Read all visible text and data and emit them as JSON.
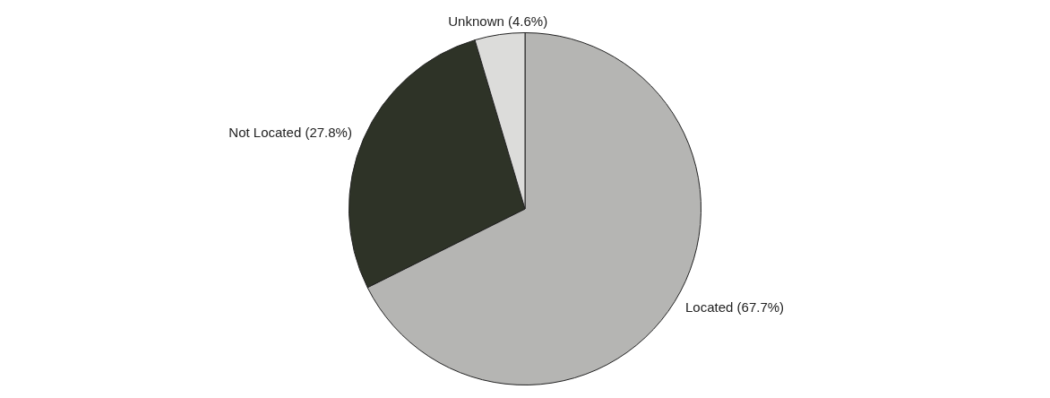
{
  "chart_data": {
    "type": "pie",
    "categories": [
      "Located (67.7%)",
      "Not Located (27.8%)",
      "Unknown (4.6%)"
    ],
    "values": [
      67.7,
      27.8,
      4.6
    ],
    "colors": [
      "#b5b5b3",
      "#2e3327",
      "#dcdcda"
    ],
    "legend": false
  }
}
